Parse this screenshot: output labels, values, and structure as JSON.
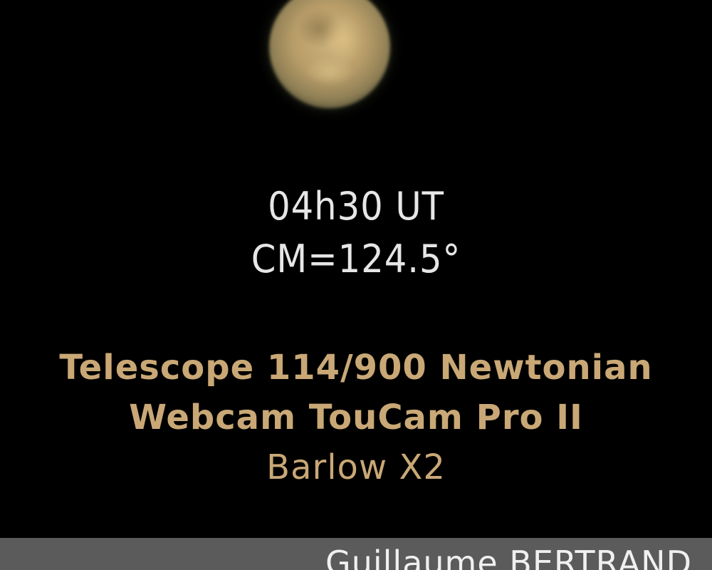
{
  "observation": {
    "time": "04h30 UT",
    "central_meridian": "CM=124.5°"
  },
  "equipment": {
    "telescope": "Telescope 114/900 Newtonian",
    "camera": "Webcam TouCam Pro II",
    "barlow": "Barlow X2"
  },
  "credit": {
    "author": "Guillaume BERTRAND"
  },
  "colors": {
    "background": "#000000",
    "observation_text": "#e6e6e6",
    "equipment_text": "#c9a876",
    "credit_bar": "#5b5b5b"
  }
}
